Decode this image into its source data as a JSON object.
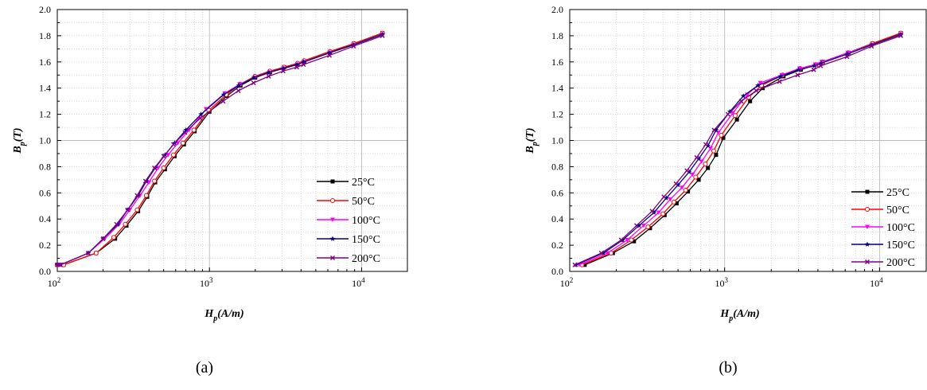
{
  "chart_data": [
    {
      "type": "line",
      "panel_caption": "(a)",
      "xlabel_main": "H",
      "xlabel_sub": "p",
      "xlabel_rest": "(A/m)",
      "ylabel_main": "B",
      "ylabel_sub": "p",
      "ylabel_rest": "(T)",
      "xscale": "log",
      "xlim": [
        100,
        20000
      ],
      "ylim": [
        0.0,
        2.0
      ],
      "x_ticks": [
        {
          "base": "10",
          "exp": "2"
        },
        {
          "base": "10",
          "exp": "3"
        },
        {
          "base": "10",
          "exp": "4"
        }
      ],
      "y_ticks": [
        "0.0",
        "0.2",
        "0.4",
        "0.6",
        "0.8",
        "1.0",
        "1.2",
        "1.4",
        "1.6",
        "1.8",
        "2.0"
      ],
      "grid": true,
      "legend_position": "bottom-right",
      "series": [
        {
          "name": "25°C",
          "color": "#000000",
          "marker": "square",
          "x": [
            100,
            110,
            180,
            240,
            285,
            340,
            390,
            440,
            510,
            590,
            680,
            800,
            1000,
            1300,
            1600,
            2000,
            2500,
            3100,
            3800,
            4200,
            6200,
            8900,
            13700
          ],
          "y": [
            0.05,
            0.05,
            0.14,
            0.25,
            0.35,
            0.46,
            0.57,
            0.68,
            0.78,
            0.88,
            0.97,
            1.07,
            1.22,
            1.34,
            1.42,
            1.48,
            1.52,
            1.56,
            1.58,
            1.6,
            1.67,
            1.74,
            1.82
          ]
        },
        {
          "name": "50°C",
          "color": "#ff0000",
          "marker": "circle",
          "x": [
            100,
            110,
            180,
            235,
            280,
            335,
            385,
            435,
            500,
            580,
            670,
            790,
            990,
            1290,
            1590,
            1990,
            2490,
            3090,
            3790,
            4190,
            6190,
            8890,
            13700
          ],
          "y": [
            0.05,
            0.05,
            0.14,
            0.26,
            0.36,
            0.47,
            0.58,
            0.69,
            0.79,
            0.89,
            0.98,
            1.08,
            1.23,
            1.35,
            1.43,
            1.49,
            1.53,
            1.56,
            1.59,
            1.61,
            1.68,
            1.74,
            1.82
          ]
        },
        {
          "name": "100°C",
          "color": "#ff00ff",
          "marker": "triangle-down",
          "x": [
            100,
            105,
            160,
            205,
            255,
            300,
            350,
            400,
            460,
            535,
            620,
            735,
            950,
            1260,
            1580,
            1980,
            2480,
            3080,
            3780,
            4180,
            6180,
            8880,
            13700
          ],
          "y": [
            0.05,
            0.05,
            0.14,
            0.25,
            0.36,
            0.47,
            0.58,
            0.68,
            0.79,
            0.89,
            0.98,
            1.08,
            1.24,
            1.36,
            1.43,
            1.48,
            1.52,
            1.55,
            1.58,
            1.6,
            1.67,
            1.73,
            1.81
          ]
        },
        {
          "name": "150°C",
          "color": "#000080",
          "marker": "star",
          "x": [
            100,
            105,
            160,
            200,
            250,
            290,
            340,
            385,
            440,
            510,
            590,
            700,
            880,
            1240,
            1560,
            1960,
            2460,
            3060,
            3760,
            4160,
            6160,
            8860,
            13700
          ],
          "y": [
            0.05,
            0.05,
            0.14,
            0.25,
            0.36,
            0.47,
            0.58,
            0.69,
            0.79,
            0.89,
            0.98,
            1.08,
            1.2,
            1.35,
            1.42,
            1.48,
            1.52,
            1.55,
            1.58,
            1.6,
            1.67,
            1.73,
            1.81
          ]
        },
        {
          "name": "200°C",
          "color": "#800080",
          "marker": "x",
          "x": [
            100,
            105,
            160,
            200,
            245,
            290,
            335,
            380,
            435,
            500,
            580,
            690,
            870,
            1230,
            1550,
            1950,
            2450,
            3050,
            3750,
            4150,
            6150,
            8850,
            13700
          ],
          "y": [
            0.05,
            0.05,
            0.14,
            0.25,
            0.36,
            0.47,
            0.58,
            0.69,
            0.79,
            0.88,
            0.97,
            1.06,
            1.17,
            1.3,
            1.38,
            1.44,
            1.49,
            1.53,
            1.56,
            1.58,
            1.65,
            1.72,
            1.8
          ]
        }
      ]
    },
    {
      "type": "line",
      "panel_caption": "(b)",
      "xlabel_main": "H",
      "xlabel_sub": "p",
      "xlabel_rest": "(A/m)",
      "ylabel_main": "B",
      "ylabel_sub": "p",
      "ylabel_rest": "(T)",
      "xscale": "log",
      "xlim": [
        100,
        20000
      ],
      "ylim": [
        0.0,
        2.0
      ],
      "x_ticks": [
        {
          "base": "10",
          "exp": "2"
        },
        {
          "base": "10",
          "exp": "3"
        },
        {
          "base": "10",
          "exp": "4"
        }
      ],
      "y_ticks": [
        "0.0",
        "0.2",
        "0.4",
        "0.6",
        "0.8",
        "1.0",
        "1.2",
        "1.4",
        "1.6",
        "1.8",
        "2.0"
      ],
      "grid": true,
      "legend_position": "bottom-right",
      "series": [
        {
          "name": "25°C",
          "color": "#000000",
          "marker": "square",
          "x": [
            125,
            190,
            260,
            330,
            410,
            490,
            580,
            680,
            780,
            880,
            980,
            1200,
            1460,
            1760,
            2400,
            3100,
            3900,
            4300,
            6300,
            9000,
            13700
          ],
          "y": [
            0.05,
            0.14,
            0.23,
            0.33,
            0.43,
            0.52,
            0.61,
            0.7,
            0.79,
            0.89,
            1.02,
            1.16,
            1.3,
            1.4,
            1.49,
            1.54,
            1.58,
            1.6,
            1.67,
            1.74,
            1.82
          ]
        },
        {
          "name": "50°C",
          "color": "#ff0000",
          "marker": "circle",
          "x": [
            120,
            185,
            250,
            320,
            400,
            470,
            560,
            650,
            750,
            850,
            950,
            1170,
            1430,
            1730,
            2370,
            3070,
            3870,
            4270,
            6270,
            8970,
            13700
          ],
          "y": [
            0.05,
            0.14,
            0.24,
            0.34,
            0.44,
            0.53,
            0.62,
            0.72,
            0.82,
            0.92,
            1.04,
            1.19,
            1.33,
            1.42,
            1.5,
            1.55,
            1.58,
            1.6,
            1.67,
            1.74,
            1.82
          ]
        },
        {
          "name": "100°C",
          "color": "#ff00ff",
          "marker": "triangle-down",
          "x": [
            115,
            175,
            235,
            300,
            375,
            445,
            530,
            620,
            710,
            810,
            910,
            1130,
            1400,
            1700,
            2340,
            3040,
            3840,
            4240,
            6240,
            8940,
            13700
          ],
          "y": [
            0.05,
            0.14,
            0.24,
            0.35,
            0.45,
            0.55,
            0.64,
            0.74,
            0.84,
            0.94,
            1.06,
            1.21,
            1.35,
            1.44,
            1.5,
            1.55,
            1.58,
            1.6,
            1.67,
            1.73,
            1.81
          ]
        },
        {
          "name": "150°C",
          "color": "#000080",
          "marker": "star",
          "x": [
            110,
            165,
            220,
            280,
            350,
            420,
            500,
            590,
            680,
            780,
            880,
            1080,
            1320,
            1640,
            2300,
            3000,
            3800,
            4200,
            6200,
            8900,
            13700
          ],
          "y": [
            0.05,
            0.14,
            0.24,
            0.35,
            0.45,
            0.56,
            0.66,
            0.76,
            0.86,
            0.96,
            1.08,
            1.22,
            1.34,
            1.42,
            1.49,
            1.54,
            1.57,
            1.59,
            1.66,
            1.73,
            1.81
          ]
        },
        {
          "name": "200°C",
          "color": "#800080",
          "marker": "x",
          "x": [
            108,
            160,
            215,
            270,
            340,
            405,
            485,
            570,
            660,
            755,
            855,
            1050,
            1280,
            1600,
            2260,
            2960,
            3760,
            4160,
            6160,
            8860,
            13700
          ],
          "y": [
            0.05,
            0.14,
            0.24,
            0.35,
            0.46,
            0.57,
            0.67,
            0.77,
            0.87,
            0.97,
            1.08,
            1.2,
            1.3,
            1.38,
            1.45,
            1.5,
            1.54,
            1.57,
            1.64,
            1.72,
            1.8
          ]
        }
      ]
    }
  ]
}
